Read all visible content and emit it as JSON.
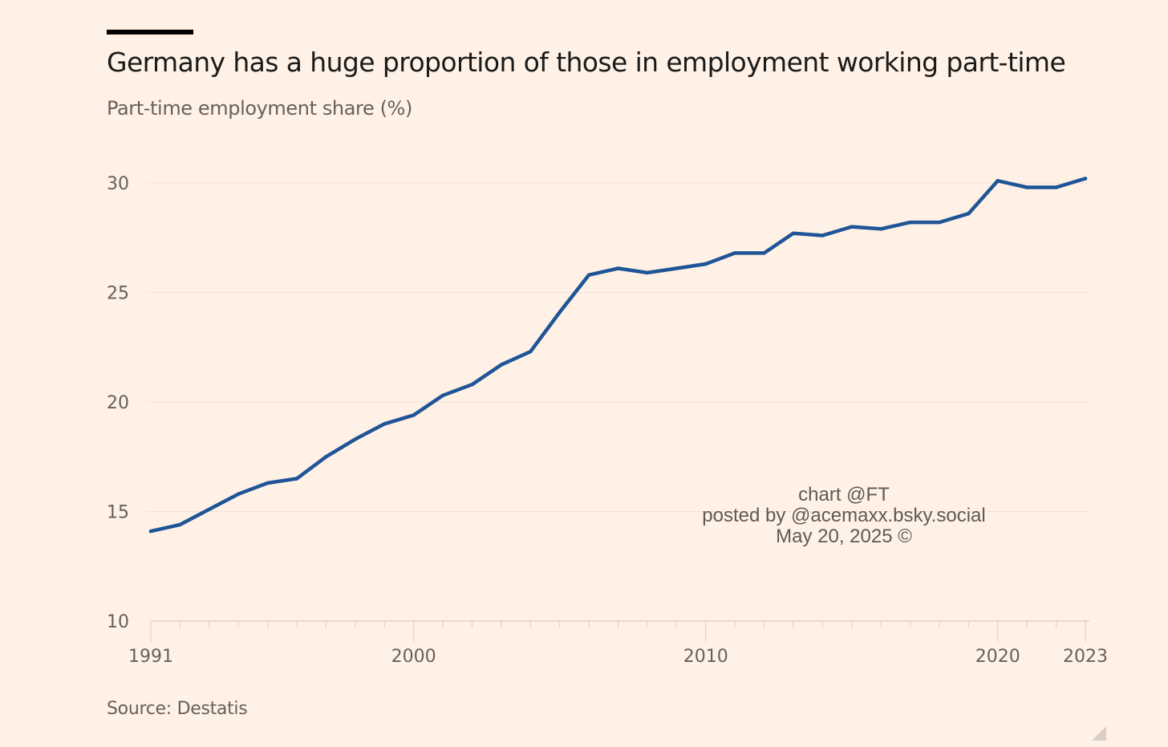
{
  "header": {
    "title": "Germany has a huge proportion of those in employment working part-time",
    "subtitle": "Part-time employment share (%)"
  },
  "footer": {
    "source": "Source: Destatis"
  },
  "watermark": {
    "line1": "chart @FT",
    "line2": "posted by @acemaxx.bsky.social",
    "line3": "May 20, 2025 ©"
  },
  "colors": {
    "background": "#fff1e5",
    "line": "#1f5597",
    "grid": "#efe3d7",
    "axis": "#e0d3c6"
  },
  "chart_data": {
    "type": "line",
    "title": "Germany has a huge proportion of those in employment working part-time",
    "subtitle": "Part-time employment share (%)",
    "xlabel": "",
    "ylabel": "Part-time employment share (%)",
    "xlim": [
      1991,
      2023
    ],
    "ylim": [
      10,
      30
    ],
    "y_ticks": [
      10,
      15,
      20,
      25,
      30
    ],
    "y_tick_labels": [
      "10",
      "15",
      "20",
      "25",
      "30"
    ],
    "x_ticks": [
      1991,
      2000,
      2010,
      2020,
      2023
    ],
    "x_tick_labels": [
      "1991",
      "2000",
      "2010",
      "2020",
      "2023"
    ],
    "grid": true,
    "series": [
      {
        "name": "Part-time employment share",
        "x": [
          1991,
          1992,
          1993,
          1994,
          1995,
          1996,
          1997,
          1998,
          1999,
          2000,
          2001,
          2002,
          2003,
          2004,
          2005,
          2006,
          2007,
          2008,
          2009,
          2010,
          2011,
          2012,
          2013,
          2014,
          2015,
          2016,
          2017,
          2018,
          2019,
          2020,
          2021,
          2022,
          2023
        ],
        "values": [
          14.1,
          14.4,
          15.1,
          15.8,
          16.3,
          16.5,
          17.5,
          18.3,
          19.0,
          19.4,
          20.3,
          20.8,
          21.7,
          22.3,
          24.1,
          25.8,
          26.1,
          25.9,
          26.1,
          26.3,
          26.8,
          26.8,
          27.7,
          27.6,
          28.0,
          27.9,
          28.2,
          28.2,
          28.6,
          30.1,
          29.8,
          29.8,
          30.2
        ]
      }
    ],
    "source": "Source: Destatis"
  }
}
